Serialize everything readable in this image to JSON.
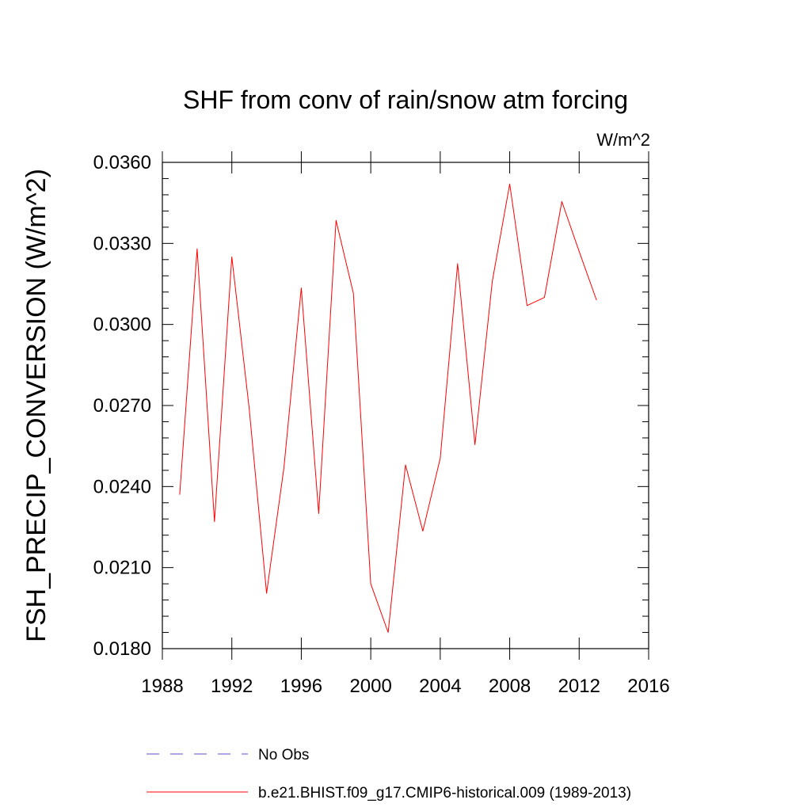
{
  "chart_data": {
    "type": "line",
    "title": "SHF from conv of rain/snow atm forcing",
    "units": "W/m^2",
    "ylabel": "FSH_PRECIP_CONVERSION  (W/m^2)",
    "xlabel": "",
    "xlim": [
      1988,
      2016
    ],
    "ylim": [
      0.018,
      0.036
    ],
    "xticks": [
      1988,
      1992,
      1996,
      2000,
      2004,
      2008,
      2012,
      2016
    ],
    "yticks": [
      "0.0180",
      "0.0210",
      "0.0240",
      "0.0270",
      "0.0300",
      "0.0330",
      "0.0360"
    ],
    "grid": false,
    "legend_position": "bottom",
    "series": [
      {
        "name": "b.e21.BHIST.f09_g17.CMIP6-historical.009 (1989-2013)",
        "color": "#ff0000",
        "style": "solid",
        "x": [
          1989,
          1990,
          1991,
          1992,
          1993,
          1994,
          1995,
          1996,
          1997,
          1998,
          1999,
          2000,
          2001,
          2002,
          2003,
          2004,
          2005,
          2006,
          2007,
          2008,
          2009,
          2010,
          2011,
          2012,
          2013
        ],
        "y": [
          0.0237,
          0.0328,
          0.0227,
          0.0325,
          0.0269,
          0.02005,
          0.0247,
          0.03135,
          0.023,
          0.03385,
          0.03115,
          0.0204,
          0.0186,
          0.0248,
          0.02235,
          0.02505,
          0.03225,
          0.02555,
          0.0316,
          0.0352,
          0.0307,
          0.031,
          0.03455,
          0.0327,
          0.0309
        ]
      }
    ],
    "legend": [
      {
        "label": "No Obs",
        "color": "#5a4fcf",
        "style": "dashed"
      },
      {
        "label": "b.e21.BHIST.f09_g17.CMIP6-historical.009 (1989-2013)",
        "color": "#ff0000",
        "style": "solid"
      }
    ]
  }
}
